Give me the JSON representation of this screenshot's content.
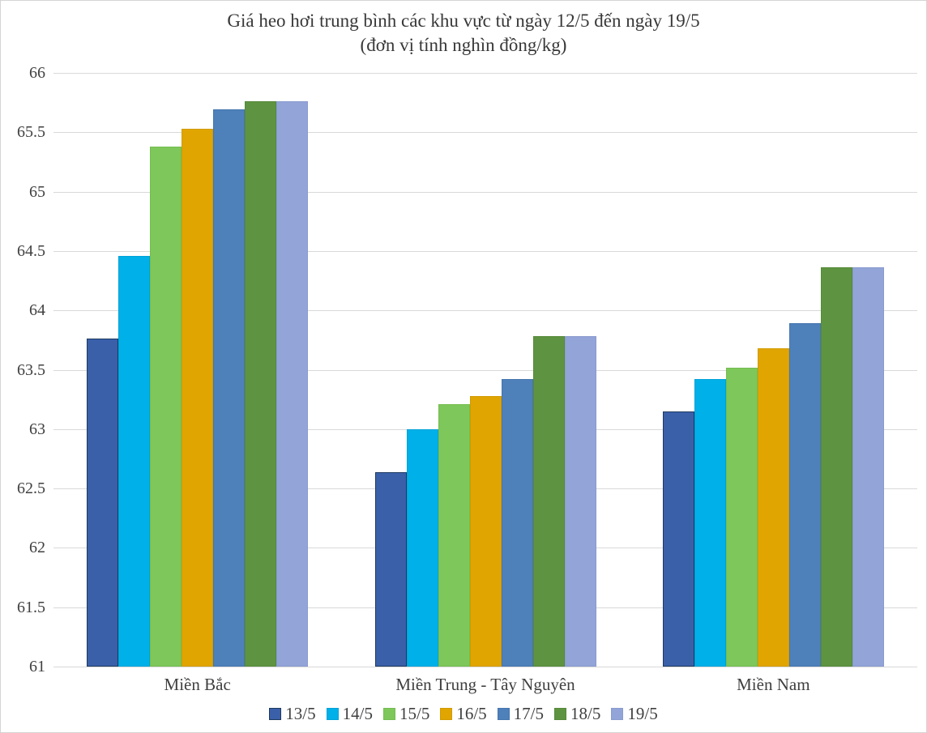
{
  "title": {
    "line1": "Giá heo hơi trung bình các khu vực từ ngày 12/5 đến ngày 19/5",
    "line2": "(đơn vị tính nghìn đồng/kg)"
  },
  "colors": {
    "gridline": "#d9d9d9",
    "text": "#404040",
    "background": "#ffffff"
  },
  "chart_data": {
    "type": "bar",
    "title": "Giá heo hơi trung bình các khu vực từ ngày 12/5 đến ngày 19/5",
    "subtitle": "(đơn vị tính nghìn đồng/kg)",
    "unit": "nghìn đồng/kg",
    "categories": [
      "Miền Bắc",
      "Miền Trung - Tây Nguyên",
      "Miền Nam"
    ],
    "series": [
      {
        "name": "13/5",
        "color": "#3a60aa",
        "border": "#1e3a5f",
        "values": [
          63.76,
          62.64,
          63.15
        ]
      },
      {
        "name": "14/5",
        "color": "#00b0e8",
        "border": "#00a2d8",
        "values": [
          64.46,
          63.0,
          63.42
        ]
      },
      {
        "name": "15/5",
        "color": "#7ec75a",
        "border": "#74bd50",
        "values": [
          65.38,
          63.21,
          63.52
        ]
      },
      {
        "name": "16/5",
        "color": "#e0a500",
        "border": "#d29b00",
        "values": [
          65.53,
          63.28,
          63.68
        ]
      },
      {
        "name": "17/5",
        "color": "#4e80ba",
        "border": "#4676ae",
        "values": [
          65.69,
          63.42,
          63.89
        ]
      },
      {
        "name": "18/5",
        "color": "#5e9441",
        "border": "#568939",
        "values": [
          65.76,
          63.78,
          64.36
        ]
      },
      {
        "name": "19/5",
        "color": "#92a4d8",
        "border": "#8a9bce",
        "values": [
          65.76,
          63.78,
          64.36
        ]
      }
    ],
    "ylim": [
      61,
      66
    ],
    "ytick_step": 0.5,
    "grid": true,
    "legend_position": "bottom"
  }
}
